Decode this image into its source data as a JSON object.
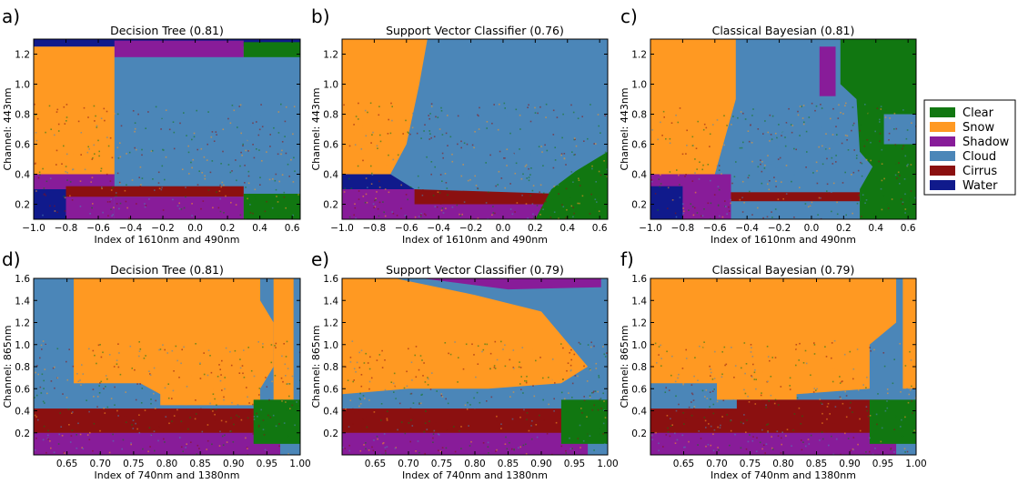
{
  "colors": {
    "Clear": "#117711",
    "Snow": "#ff9922",
    "Shadow": "#881c99",
    "Cloud": "#4b86b8",
    "Cirrus": "#8b1010",
    "Water": "#101a8c"
  },
  "legend": {
    "items": [
      "Clear",
      "Snow",
      "Shadow",
      "Cloud",
      "Cirrus",
      "Water"
    ]
  },
  "chart_data": [
    {
      "type": "heatmap",
      "letter": "a)",
      "title": "Decision Tree (0.81)",
      "xlabel": "Index of 1610nm and 490nm",
      "ylabel": "Channel: 443nm",
      "xlim": [
        -1.0,
        0.65
      ],
      "ylim": [
        0.1,
        1.3
      ],
      "xticks": [
        "−1.0",
        "−0.8",
        "−0.6",
        "−0.4",
        "−0.2",
        "0.0",
        "0.2",
        "0.4",
        "0.6"
      ],
      "xtick_values": [
        -1.0,
        -0.8,
        -0.6,
        -0.4,
        -0.2,
        0.0,
        0.2,
        0.4,
        0.6
      ],
      "yticks": [
        "0.2",
        "0.4",
        "0.6",
        "0.8",
        "1.0",
        "1.2"
      ],
      "ytick_values": [
        0.2,
        0.4,
        0.6,
        0.8,
        1.0,
        1.2
      ],
      "background": "Cloud",
      "regions": [
        {
          "cls": "Water",
          "x": [
            -1.0,
            0.65
          ],
          "y": [
            1.25,
            1.3
          ]
        },
        {
          "cls": "Shadow",
          "x": [
            -0.5,
            0.3
          ],
          "y": [
            1.18,
            1.29
          ]
        },
        {
          "cls": "Clear",
          "x": [
            0.3,
            0.65
          ],
          "y": [
            1.18,
            1.28
          ]
        },
        {
          "cls": "Snow",
          "x": [
            -1.0,
            -0.5
          ],
          "y": [
            0.4,
            1.25
          ]
        },
        {
          "cls": "Shadow",
          "x": [
            -1.0,
            -0.5
          ],
          "y": [
            0.1,
            0.4
          ]
        },
        {
          "cls": "Water",
          "x": [
            -1.0,
            -0.8
          ],
          "y": [
            0.1,
            0.3
          ]
        },
        {
          "cls": "Cirrus",
          "x": [
            -0.8,
            0.3
          ],
          "y": [
            0.25,
            0.32
          ]
        },
        {
          "cls": "Shadow",
          "x": [
            -0.5,
            0.3
          ],
          "y": [
            0.1,
            0.25
          ]
        },
        {
          "cls": "Clear",
          "x": [
            0.3,
            0.65
          ],
          "y": [
            0.1,
            0.27
          ]
        }
      ]
    },
    {
      "type": "heatmap",
      "letter": "b)",
      "title": "Support Vector Classifier (0.76)",
      "xlabel": "Index of 1610nm and 490nm",
      "ylabel": "Channel: 443nm",
      "xlim": [
        -1.0,
        0.65
      ],
      "ylim": [
        0.1,
        1.3
      ],
      "xticks": [
        "−1.0",
        "−0.8",
        "−0.6",
        "−0.4",
        "−0.2",
        "0.0",
        "0.2",
        "0.4",
        "0.6"
      ],
      "xtick_values": [
        -1.0,
        -0.8,
        -0.6,
        -0.4,
        -0.2,
        0.0,
        0.2,
        0.4,
        0.6
      ],
      "yticks": [
        "0.2",
        "0.4",
        "0.6",
        "0.8",
        "1.0",
        "1.2"
      ],
      "ytick_values": [
        0.2,
        0.4,
        0.6,
        0.8,
        1.0,
        1.2
      ],
      "background": "Cloud",
      "regions": [
        {
          "cls": "Snow",
          "poly": [
            [
              -1.0,
              1.3
            ],
            [
              -0.47,
              1.3
            ],
            [
              -0.52,
              1.0
            ],
            [
              -0.6,
              0.6
            ],
            [
              -0.7,
              0.4
            ],
            [
              -1.0,
              0.4
            ]
          ]
        },
        {
          "cls": "Water",
          "poly": [
            [
              -1.0,
              0.4
            ],
            [
              -0.7,
              0.4
            ],
            [
              -0.55,
              0.3
            ],
            [
              -0.55,
              0.2
            ],
            [
              -1.0,
              0.2
            ]
          ]
        },
        {
          "cls": "Shadow",
          "poly": [
            [
              -1.0,
              0.1
            ],
            [
              0.3,
              0.1
            ],
            [
              0.3,
              0.2
            ],
            [
              -0.55,
              0.2
            ],
            [
              -0.55,
              0.3
            ],
            [
              -1.0,
              0.3
            ]
          ]
        },
        {
          "cls": "Cirrus",
          "poly": [
            [
              -0.55,
              0.2
            ],
            [
              0.3,
              0.2
            ],
            [
              0.32,
              0.27
            ],
            [
              -0.55,
              0.3
            ]
          ]
        },
        {
          "cls": "Clear",
          "poly": [
            [
              0.2,
              0.1
            ],
            [
              0.65,
              0.1
            ],
            [
              0.65,
              0.55
            ],
            [
              0.45,
              0.42
            ],
            [
              0.3,
              0.3
            ]
          ]
        }
      ]
    },
    {
      "type": "heatmap",
      "letter": "c)",
      "title": "Classical Bayesian (0.81)",
      "xlabel": "Index of 1610nm and 490nm",
      "ylabel": "Channel: 443nm",
      "xlim": [
        -1.0,
        0.65
      ],
      "ylim": [
        0.1,
        1.3
      ],
      "xticks": [
        "−1.0",
        "−0.8",
        "−0.6",
        "−0.4",
        "−0.2",
        "0.0",
        "0.2",
        "0.4",
        "0.6"
      ],
      "xtick_values": [
        -1.0,
        -0.8,
        -0.6,
        -0.4,
        -0.2,
        0.0,
        0.2,
        0.4,
        0.6
      ],
      "yticks": [
        "0.2",
        "0.4",
        "0.6",
        "0.8",
        "1.0",
        "1.2"
      ],
      "ytick_values": [
        0.2,
        0.4,
        0.6,
        0.8,
        1.0,
        1.2
      ],
      "background": "Cloud",
      "regions": [
        {
          "cls": "Snow",
          "poly": [
            [
              -1.0,
              1.3
            ],
            [
              -0.47,
              1.3
            ],
            [
              -0.47,
              0.9
            ],
            [
              -0.6,
              0.4
            ],
            [
              -1.0,
              0.4
            ]
          ]
        },
        {
          "cls": "Shadow",
          "x": [
            0.05,
            0.15
          ],
          "y": [
            0.92,
            1.25
          ]
        },
        {
          "cls": "Clear",
          "poly": [
            [
              0.18,
              1.3
            ],
            [
              0.65,
              1.3
            ],
            [
              0.65,
              0.8
            ],
            [
              0.45,
              0.8
            ],
            [
              0.45,
              0.6
            ],
            [
              0.65,
              0.6
            ],
            [
              0.65,
              0.1
            ],
            [
              0.3,
              0.1
            ],
            [
              0.3,
              0.3
            ],
            [
              0.38,
              0.45
            ],
            [
              0.3,
              0.55
            ],
            [
              0.28,
              0.9
            ],
            [
              0.18,
              1.0
            ]
          ]
        },
        {
          "cls": "Shadow",
          "x": [
            -1.0,
            -0.5
          ],
          "y": [
            0.1,
            0.4
          ]
        },
        {
          "cls": "Water",
          "x": [
            -1.0,
            -0.8
          ],
          "y": [
            0.1,
            0.32
          ]
        },
        {
          "cls": "Cirrus",
          "x": [
            -0.5,
            0.3
          ],
          "y": [
            0.22,
            0.28
          ]
        }
      ]
    },
    {
      "type": "heatmap",
      "letter": "d)",
      "title": "Decision Tree (0.81)",
      "xlabel": "Index of 740nm and 1380nm",
      "ylabel": "Channel: 865nm",
      "xlim": [
        0.6,
        1.0
      ],
      "ylim": [
        0.0,
        1.6
      ],
      "xticks": [
        "0.65",
        "0.70",
        "0.75",
        "0.80",
        "0.85",
        "0.90",
        "0.95",
        "1.00"
      ],
      "xtick_values": [
        0.65,
        0.7,
        0.75,
        0.8,
        0.85,
        0.9,
        0.95,
        1.0
      ],
      "yticks": [
        "0.2",
        "0.4",
        "0.6",
        "0.8",
        "1.0",
        "1.2",
        "1.4",
        "1.6"
      ],
      "ytick_values": [
        0.2,
        0.4,
        0.6,
        0.8,
        1.0,
        1.2,
        1.4,
        1.6
      ],
      "background": "Cloud",
      "regions": [
        {
          "cls": "Snow",
          "poly": [
            [
              0.66,
              1.6
            ],
            [
              0.94,
              1.6
            ],
            [
              0.94,
              1.4
            ],
            [
              0.96,
              1.2
            ],
            [
              0.96,
              0.8
            ],
            [
              0.94,
              0.6
            ],
            [
              0.94,
              0.45
            ],
            [
              0.79,
              0.45
            ],
            [
              0.79,
              0.55
            ],
            [
              0.76,
              0.65
            ],
            [
              0.66,
              0.65
            ]
          ]
        },
        {
          "cls": "Snow",
          "x": [
            0.96,
            0.99
          ],
          "y": [
            0.5,
            1.6
          ]
        },
        {
          "cls": "Cirrus",
          "x": [
            0.6,
            0.96
          ],
          "y": [
            0.1,
            0.42
          ]
        },
        {
          "cls": "Shadow",
          "x": [
            0.6,
            0.97
          ],
          "y": [
            0.0,
            0.2
          ]
        },
        {
          "cls": "Clear",
          "x": [
            0.93,
            1.0
          ],
          "y": [
            0.1,
            0.5
          ]
        }
      ]
    },
    {
      "type": "heatmap",
      "letter": "e)",
      "title": "Support Vector Classifier (0.79)",
      "xlabel": "Index of 740nm and 1380nm",
      "ylabel": "Channel: 865nm",
      "xlim": [
        0.6,
        1.0
      ],
      "ylim": [
        0.0,
        1.6
      ],
      "xticks": [
        "0.65",
        "0.70",
        "0.75",
        "0.80",
        "0.85",
        "0.90",
        "0.95",
        "1.00"
      ],
      "xtick_values": [
        0.65,
        0.7,
        0.75,
        0.8,
        0.85,
        0.9,
        0.95,
        1.0
      ],
      "yticks": [
        "0.2",
        "0.4",
        "0.6",
        "0.8",
        "1.0",
        "1.2",
        "1.4",
        "1.6"
      ],
      "ytick_values": [
        0.2,
        0.4,
        0.6,
        0.8,
        1.0,
        1.2,
        1.4,
        1.6
      ],
      "background": "Cloud",
      "regions": [
        {
          "cls": "Snow",
          "poly": [
            [
              0.6,
              1.6
            ],
            [
              0.68,
              1.6
            ],
            [
              0.8,
              1.45
            ],
            [
              0.9,
              1.3
            ],
            [
              0.97,
              0.8
            ],
            [
              0.93,
              0.65
            ],
            [
              0.82,
              0.6
            ],
            [
              0.7,
              0.6
            ],
            [
              0.6,
              0.55
            ]
          ]
        },
        {
          "cls": "Shadow",
          "poly": [
            [
              0.72,
              1.6
            ],
            [
              0.99,
              1.6
            ],
            [
              0.99,
              1.52
            ],
            [
              0.85,
              1.5
            ]
          ]
        },
        {
          "cls": "Cirrus",
          "x": [
            0.6,
            0.96
          ],
          "y": [
            0.1,
            0.42
          ]
        },
        {
          "cls": "Shadow",
          "x": [
            0.6,
            0.97
          ],
          "y": [
            0.0,
            0.2
          ]
        },
        {
          "cls": "Clear",
          "x": [
            0.93,
            1.0
          ],
          "y": [
            0.1,
            0.5
          ]
        }
      ]
    },
    {
      "type": "heatmap",
      "letter": "f)",
      "title": "Classical Bayesian (0.79)",
      "xlabel": "Index of 740nm and 1380nm",
      "ylabel": "Channel: 865nm",
      "xlim": [
        0.6,
        1.0
      ],
      "ylim": [
        0.0,
        1.6
      ],
      "xticks": [
        "0.65",
        "0.70",
        "0.75",
        "0.80",
        "0.85",
        "0.90",
        "0.95",
        "1.00"
      ],
      "xtick_values": [
        0.65,
        0.7,
        0.75,
        0.8,
        0.85,
        0.9,
        0.95,
        1.0
      ],
      "yticks": [
        "0.2",
        "0.4",
        "0.6",
        "0.8",
        "1.0",
        "1.2",
        "1.4",
        "1.6"
      ],
      "ytick_values": [
        0.2,
        0.4,
        0.6,
        0.8,
        1.0,
        1.2,
        1.4,
        1.6
      ],
      "background": "Cloud",
      "regions": [
        {
          "cls": "Snow",
          "poly": [
            [
              0.6,
              1.6
            ],
            [
              0.97,
              1.6
            ],
            [
              0.97,
              1.2
            ],
            [
              0.93,
              1.0
            ],
            [
              0.93,
              0.6
            ],
            [
              0.82,
              0.55
            ],
            [
              0.82,
              0.5
            ],
            [
              0.7,
              0.5
            ],
            [
              0.7,
              0.65
            ],
            [
              0.6,
              0.65
            ]
          ]
        },
        {
          "cls": "Snow",
          "x": [
            0.98,
            1.0
          ],
          "y": [
            0.6,
            1.6
          ]
        },
        {
          "cls": "Cirrus",
          "poly": [
            [
              0.6,
              0.1
            ],
            [
              0.96,
              0.1
            ],
            [
              0.96,
              0.5
            ],
            [
              0.73,
              0.5
            ],
            [
              0.73,
              0.42
            ],
            [
              0.6,
              0.42
            ]
          ]
        },
        {
          "cls": "Shadow",
          "x": [
            0.6,
            0.97
          ],
          "y": [
            0.0,
            0.2
          ]
        },
        {
          "cls": "Clear",
          "x": [
            0.93,
            1.0
          ],
          "y": [
            0.1,
            0.5
          ]
        }
      ]
    }
  ]
}
